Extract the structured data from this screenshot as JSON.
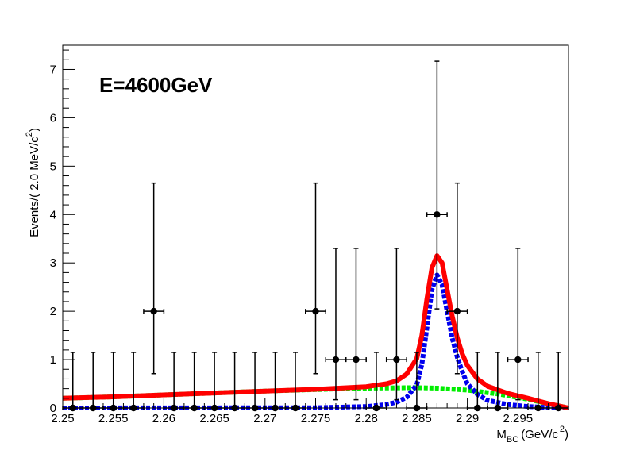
{
  "chart_data": {
    "type": "scatter",
    "annotation": "E=4600GeV",
    "xlabel": {
      "main": "M",
      "sub": "BC",
      "unit": "(GeV/c",
      "sup": "2",
      "close": ")"
    },
    "ylabel": {
      "main": "Events/(  2.0 MeV/c",
      "sup": "2",
      "close": ")"
    },
    "xlim": [
      2.25,
      2.3
    ],
    "ylim": [
      0,
      7.5
    ],
    "x_ticks": [
      2.25,
      2.255,
      2.26,
      2.265,
      2.27,
      2.275,
      2.28,
      2.285,
      2.29,
      2.295
    ],
    "x_tick_labels": [
      "2.25",
      "2.255",
      "2.26",
      "2.265",
      "2.27",
      "2.275",
      "2.28",
      "2.285",
      "2.29",
      "2.295"
    ],
    "y_ticks": [
      0,
      1,
      2,
      3,
      4,
      5,
      6,
      7
    ],
    "y_tick_labels": [
      "0",
      "1",
      "2",
      "3",
      "4",
      "5",
      "6",
      "7"
    ],
    "grid": false,
    "data_points": {
      "name": "data",
      "color": "#000000",
      "x_half_width": 0.001,
      "points": [
        {
          "x": 2.251,
          "y": 0,
          "lo": 0,
          "hi": 1.15
        },
        {
          "x": 2.253,
          "y": 0,
          "lo": 0,
          "hi": 1.15
        },
        {
          "x": 2.255,
          "y": 0,
          "lo": 0,
          "hi": 1.15
        },
        {
          "x": 2.257,
          "y": 0,
          "lo": 0,
          "hi": 1.15
        },
        {
          "x": 2.259,
          "y": 2,
          "lo": 0.71,
          "hi": 4.65
        },
        {
          "x": 2.261,
          "y": 0,
          "lo": 0,
          "hi": 1.15
        },
        {
          "x": 2.263,
          "y": 0,
          "lo": 0,
          "hi": 1.15
        },
        {
          "x": 2.265,
          "y": 0,
          "lo": 0,
          "hi": 1.15
        },
        {
          "x": 2.267,
          "y": 0,
          "lo": 0,
          "hi": 1.15
        },
        {
          "x": 2.269,
          "y": 0,
          "lo": 0,
          "hi": 1.15
        },
        {
          "x": 2.271,
          "y": 0,
          "lo": 0,
          "hi": 1.15
        },
        {
          "x": 2.273,
          "y": 0,
          "lo": 0,
          "hi": 1.15
        },
        {
          "x": 2.275,
          "y": 2,
          "lo": 0.71,
          "hi": 4.65
        },
        {
          "x": 2.277,
          "y": 1,
          "lo": 0.17,
          "hi": 3.3
        },
        {
          "x": 2.279,
          "y": 1,
          "lo": 0.17,
          "hi": 3.3
        },
        {
          "x": 2.281,
          "y": 0,
          "lo": 0,
          "hi": 1.15
        },
        {
          "x": 2.283,
          "y": 1,
          "lo": 0.17,
          "hi": 3.3
        },
        {
          "x": 2.285,
          "y": 0,
          "lo": 0,
          "hi": 1.15
        },
        {
          "x": 2.287,
          "y": 4,
          "lo": 2.05,
          "hi": 7.17
        },
        {
          "x": 2.289,
          "y": 2,
          "lo": 0.71,
          "hi": 4.65
        },
        {
          "x": 2.291,
          "y": 0,
          "lo": 0,
          "hi": 1.15
        },
        {
          "x": 2.293,
          "y": 0,
          "lo": 0,
          "hi": 1.15
        },
        {
          "x": 2.295,
          "y": 1,
          "lo": 0.17,
          "hi": 3.3
        },
        {
          "x": 2.297,
          "y": 0,
          "lo": 0,
          "hi": 1.15
        },
        {
          "x": 2.299,
          "y": 0,
          "lo": 0,
          "hi": 1.15
        }
      ]
    },
    "series": [
      {
        "color": "#00ee00",
        "style": "dashed",
        "x": [
          2.25,
          2.255,
          2.26,
          2.265,
          2.27,
          2.275,
          2.28,
          2.285,
          2.287,
          2.29,
          2.293,
          2.296,
          2.298,
          2.3
        ],
        "y": [
          0.2,
          0.23,
          0.27,
          0.31,
          0.35,
          0.38,
          0.41,
          0.42,
          0.41,
          0.37,
          0.29,
          0.18,
          0.09,
          0
        ]
      },
      {
        "color": "#0000ee",
        "style": "dashed",
        "x": [
          2.25,
          2.275,
          2.28,
          2.282,
          2.283,
          2.284,
          2.285,
          2.2855,
          2.286,
          2.2865,
          2.287,
          2.2875,
          2.288,
          2.2885,
          2.289,
          2.2895,
          2.29,
          2.291,
          2.292,
          2.294,
          2.296,
          2.298,
          2.3
        ],
        "y": [
          0,
          0.005,
          0.03,
          0.07,
          0.12,
          0.22,
          0.48,
          0.9,
          1.65,
          2.45,
          2.75,
          2.55,
          2.0,
          1.45,
          1.05,
          0.75,
          0.5,
          0.28,
          0.16,
          0.07,
          0.03,
          0.01,
          0
        ]
      },
      {
        "color": "#ff0000",
        "style": "solid",
        "x": [
          2.25,
          2.255,
          2.26,
          2.265,
          2.27,
          2.275,
          2.28,
          2.282,
          2.283,
          2.284,
          2.285,
          2.2855,
          2.286,
          2.2865,
          2.287,
          2.2875,
          2.288,
          2.2885,
          2.289,
          2.2895,
          2.29,
          2.291,
          2.292,
          2.294,
          2.296,
          2.298,
          2.3
        ],
        "y": [
          0.2,
          0.23,
          0.27,
          0.31,
          0.35,
          0.385,
          0.44,
          0.5,
          0.56,
          0.7,
          1.02,
          1.5,
          2.25,
          2.9,
          3.15,
          3.0,
          2.45,
          1.9,
          1.45,
          1.12,
          0.88,
          0.6,
          0.45,
          0.3,
          0.2,
          0.09,
          0
        ]
      }
    ]
  }
}
